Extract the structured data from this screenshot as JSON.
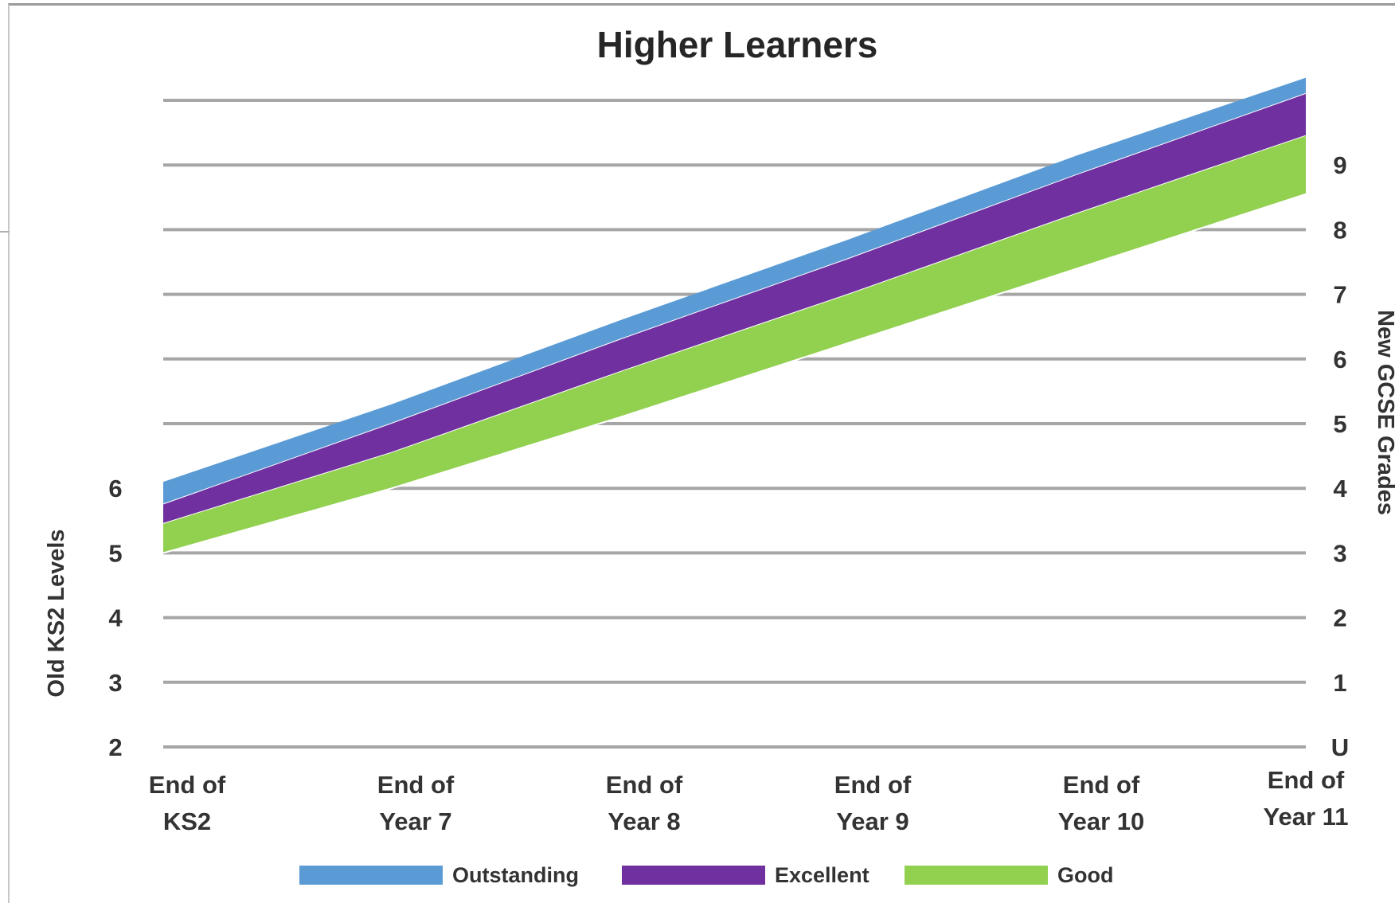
{
  "chart_data": {
    "type": "area",
    "title": "Higher Learners",
    "categories": [
      [
        "End of",
        "KS2"
      ],
      [
        "End of",
        "Year 7"
      ],
      [
        "End of",
        "Year 8"
      ],
      [
        "End of",
        "Year 9"
      ],
      [
        "End of",
        "Year 10"
      ],
      [
        "End of",
        "Year 11"
      ]
    ],
    "y_left_label": "Old KS2 Levels",
    "y_left_ticks": [
      "2",
      "3",
      "4",
      "5",
      "6"
    ],
    "y_right_label": "New GCSE Grades",
    "y_right_ticks": [
      "U",
      "1",
      "2",
      "3",
      "4",
      "5",
      "6",
      "7",
      "8",
      "9"
    ],
    "series": [
      {
        "name": "Outstanding",
        "color": "#5b9bd5",
        "lower": [
          2.75,
          4.0,
          5.3,
          6.55,
          7.85,
          9.1
        ],
        "upper": [
          3.1,
          4.3,
          5.6,
          6.85,
          8.15,
          9.35
        ]
      },
      {
        "name": "Excellent",
        "color": "#7030a0",
        "lower": [
          2.45,
          3.55,
          4.8,
          6.0,
          7.25,
          8.45
        ],
        "upper": [
          2.75,
          4.0,
          5.3,
          6.55,
          7.85,
          9.1
        ]
      },
      {
        "name": "Good",
        "color": "#92d050",
        "lower": [
          2.0,
          3.0,
          4.1,
          5.25,
          6.4,
          7.55
        ],
        "upper": [
          2.45,
          3.55,
          4.8,
          6.0,
          7.25,
          8.45
        ]
      }
    ],
    "y_range": [
      -1,
      9
    ],
    "grid": true,
    "legend_position": "bottom"
  }
}
